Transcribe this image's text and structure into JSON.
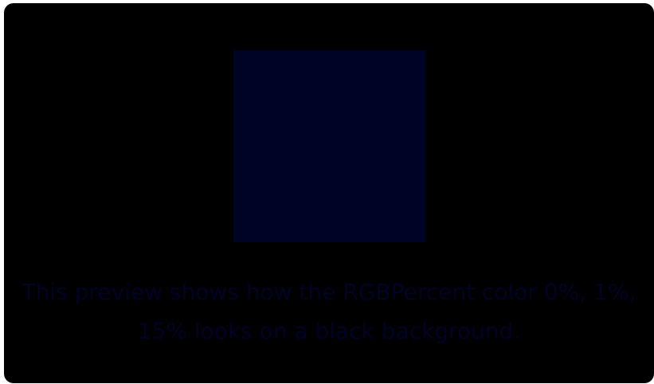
{
  "preview": {
    "swatch_color": "#000326",
    "caption_color": "#000326",
    "background_color": "#000000",
    "caption_lines": [
      "This preview shows how the RGBPercent color 0%, 1%,",
      "15% looks on a black background."
    ]
  }
}
